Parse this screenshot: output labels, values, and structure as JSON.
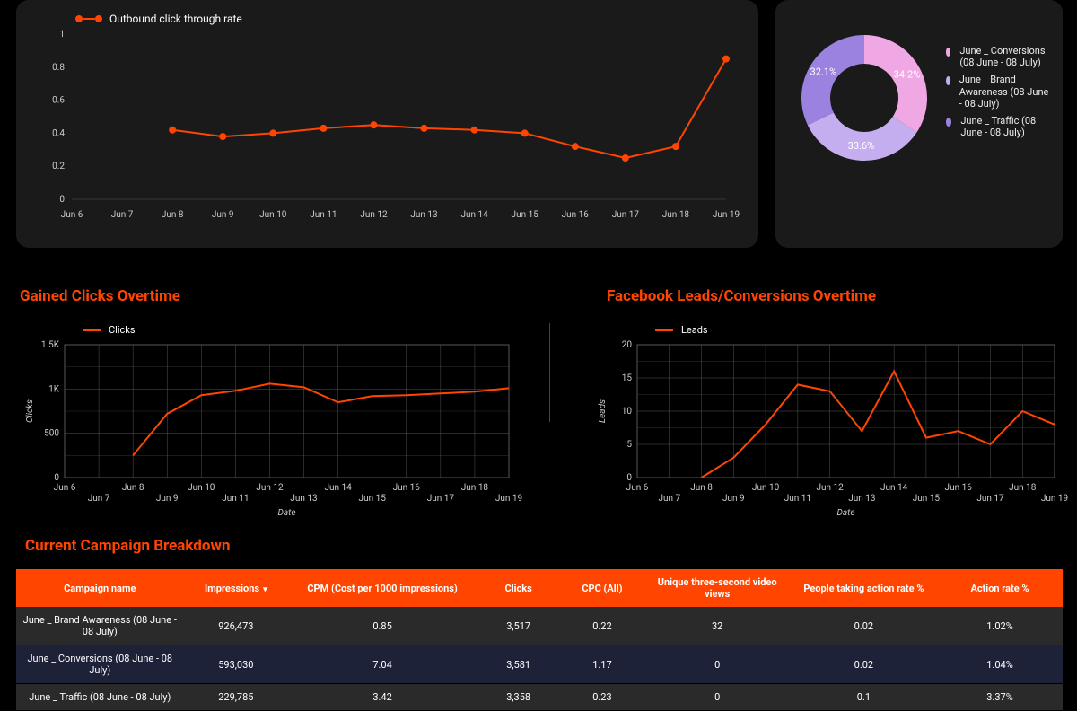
{
  "colors": {
    "accent": "#ff4500",
    "panel_bg": "#1a1a1a",
    "grid": "#555555",
    "text": "#cccccc"
  },
  "ctr_chart": {
    "type": "line",
    "legend_label": "Outbound click through rate",
    "line_color": "#ff4500",
    "marker_color": "#ff4500",
    "marker_radius": 4,
    "x_categories": [
      "Jun 6",
      "Jun 7",
      "Jun 8",
      "Jun 9",
      "Jun 10",
      "Jun 11",
      "Jun 12",
      "Jun 13",
      "Jun 14",
      "Jun 15",
      "Jun 16",
      "Jun 17",
      "Jun 18",
      "Jun 19"
    ],
    "y_ticks": [
      0,
      0.2,
      0.4,
      0.6,
      0.8,
      1
    ],
    "ylim": [
      0,
      1
    ],
    "values": [
      null,
      null,
      0.42,
      0.38,
      0.4,
      0.43,
      0.45,
      0.43,
      0.42,
      0.4,
      0.32,
      0.25,
      0.32,
      0.85
    ]
  },
  "donut_chart": {
    "type": "donut",
    "background": "#1a1a1a",
    "slices": [
      {
        "label": "June _ Conversions (08 June - 08 July)",
        "value": 34.2,
        "color": "#f0a8e4",
        "text": "34.2%"
      },
      {
        "label": "June _ Brand Awareness (08 June - 08 July)",
        "value": 33.6,
        "color": "#c5aef0",
        "text": "33.6%"
      },
      {
        "label": "June _ Traffic (08 June - 08 July)",
        "value": 32.1,
        "color": "#9b82e0",
        "text": "32.1%"
      }
    ]
  },
  "clicks_section": {
    "title": "Gained Clicks Overtime",
    "legend_label": "Clicks",
    "line_color": "#ff4500",
    "x_axis_label": "Date",
    "y_axis_label": "Clicks",
    "x_categories": [
      "Jun 6",
      "Jun 7",
      "Jun 8",
      "Jun 9",
      "Jun 10",
      "Jun 11",
      "Jun 12",
      "Jun 13",
      "Jun 14",
      "Jun 15",
      "Jun 16",
      "Jun 17",
      "Jun 18",
      "Jun 19"
    ],
    "y_ticks": [
      0,
      500,
      1000,
      1500
    ],
    "y_tick_labels": [
      "0",
      "500",
      "1K",
      "1.5K"
    ],
    "ylim": [
      0,
      1500
    ],
    "values": [
      null,
      null,
      250,
      720,
      930,
      980,
      1060,
      1020,
      850,
      920,
      930,
      950,
      970,
      1010
    ]
  },
  "leads_section": {
    "title": "Facebook Leads/Conversions Overtime",
    "legend_label": "Leads",
    "line_color": "#ff4500",
    "x_axis_label": "Date",
    "y_axis_label": "Leads",
    "x_categories": [
      "Jun 6",
      "Jun 7",
      "Jun 8",
      "Jun 9",
      "Jun 10",
      "Jun 11",
      "Jun 12",
      "Jun 13",
      "Jun 14",
      "Jun 15",
      "Jun 16",
      "Jun 17",
      "Jun 18",
      "Jun 19"
    ],
    "y_ticks": [
      0,
      5,
      10,
      15,
      20
    ],
    "ylim": [
      0,
      20
    ],
    "values": [
      null,
      null,
      0,
      3,
      8,
      14,
      13,
      7,
      16,
      6,
      7,
      5,
      10,
      8
    ]
  },
  "campaign_table": {
    "title": "Current Campaign Breakdown",
    "sort_column_index": 1,
    "sort_indicator": "▾",
    "columns": [
      "Campaign name",
      "Impressions",
      "CPM (Cost per 1000 impressions)",
      "Clicks",
      "CPC (All)",
      "Unique three-second video views",
      "People taking action rate %",
      "Action rate %"
    ],
    "rows": [
      [
        "June _ Brand Awareness (08 June - 08 July)",
        "926,473",
        "0.85",
        "3,517",
        "0.22",
        "32",
        "0.02",
        "1.02%"
      ],
      [
        "June _ Conversions (08 June - 08 July)",
        "593,030",
        "7.04",
        "3,581",
        "1.17",
        "0",
        "0.02",
        "1.04%"
      ],
      [
        "June _ Traffic (08 June - 08 July)",
        "229,785",
        "3.42",
        "3,358",
        "0.23",
        "0",
        "0.1",
        "3.37%"
      ]
    ]
  }
}
